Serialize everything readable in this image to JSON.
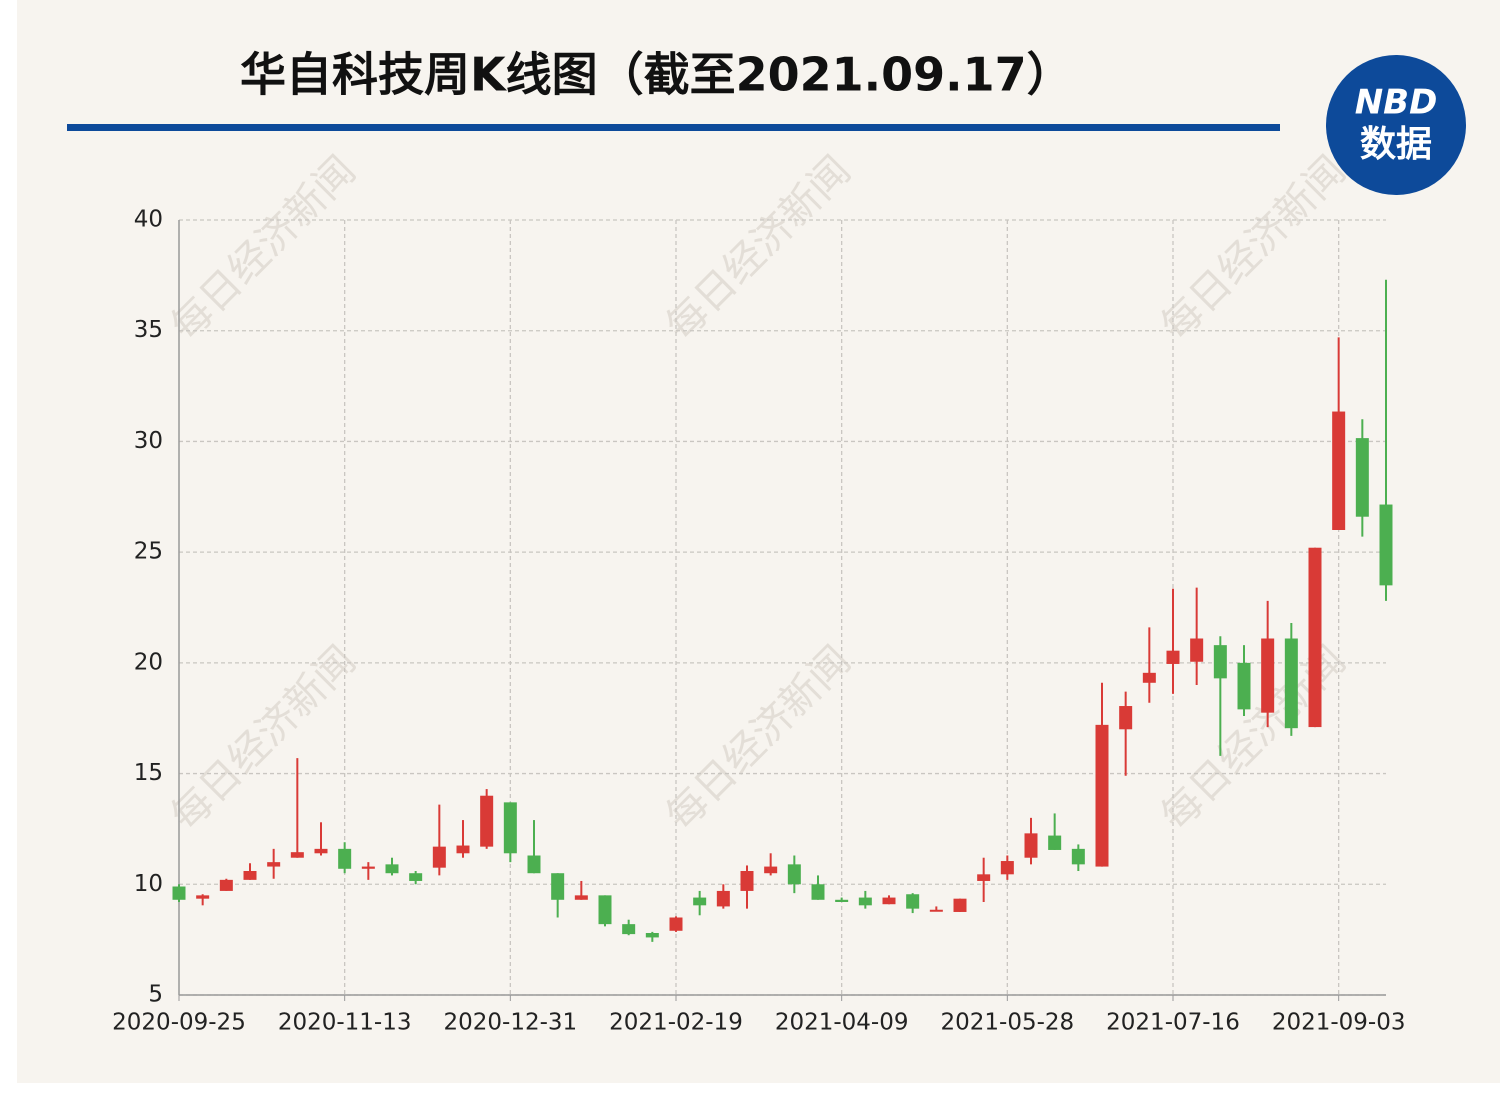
{
  "chart_data": {
    "type": "candlestick",
    "title": "华自科技周K线图（截至2021.09.17）",
    "logo": {
      "top": "NBD",
      "bottom": "数据"
    },
    "watermark": "每日经济新闻",
    "categories": [
      "2020-09-25",
      null,
      null,
      null,
      null,
      null,
      null,
      "2020-11-13",
      null,
      null,
      null,
      null,
      null,
      null,
      "2020-12-31",
      null,
      null,
      null,
      null,
      null,
      null,
      "2021-02-19",
      null,
      null,
      null,
      null,
      null,
      null,
      "2021-04-09",
      null,
      null,
      null,
      null,
      null,
      null,
      "2021-05-28",
      null,
      null,
      null,
      null,
      null,
      null,
      "2021-07-16",
      null,
      null,
      null,
      null,
      null,
      null,
      "2021-09-03",
      null,
      null
    ],
    "open": [
      9.9,
      9.35,
      9.7,
      10.2,
      10.8,
      11.2,
      11.4,
      11.6,
      10.7,
      10.9,
      10.5,
      10.75,
      11.4,
      11.7,
      13.7,
      11.3,
      10.5,
      9.3,
      9.5,
      8.2,
      7.8,
      7.9,
      9.4,
      9.0,
      9.7,
      10.5,
      10.9,
      10.0,
      9.3,
      9.4,
      9.1,
      9.55,
      8.8,
      8.75,
      10.15,
      10.45,
      11.2,
      12.2,
      11.6,
      10.8,
      17.0,
      19.1,
      19.95,
      20.05,
      20.8,
      20.0,
      17.75,
      21.1,
      17.1,
      26.0,
      30.15,
      27.15
    ],
    "close": [
      9.3,
      9.5,
      10.2,
      10.6,
      11.0,
      11.45,
      11.6,
      10.7,
      10.8,
      10.5,
      10.15,
      11.7,
      11.75,
      14.0,
      11.4,
      10.5,
      9.3,
      9.5,
      8.2,
      7.75,
      7.6,
      8.5,
      9.05,
      9.7,
      10.6,
      10.8,
      10.0,
      9.3,
      9.2,
      9.05,
      9.4,
      8.9,
      8.85,
      9.35,
      10.45,
      11.05,
      12.3,
      11.55,
      10.9,
      17.2,
      18.05,
      19.55,
      20.55,
      21.1,
      19.3,
      17.9,
      21.1,
      17.05,
      25.2,
      31.35,
      26.6,
      23.5
    ],
    "high": [
      10.0,
      9.55,
      10.25,
      10.95,
      11.6,
      15.7,
      12.8,
      11.9,
      11.0,
      11.2,
      10.6,
      13.6,
      12.9,
      14.3,
      13.7,
      12.9,
      10.5,
      10.15,
      9.5,
      8.4,
      7.85,
      8.55,
      9.7,
      10.0,
      10.85,
      11.4,
      11.3,
      10.4,
      9.4,
      9.7,
      9.5,
      9.6,
      9.0,
      9.35,
      11.2,
      11.3,
      13.0,
      13.2,
      11.8,
      19.1,
      18.7,
      21.6,
      23.35,
      23.4,
      21.2,
      20.8,
      22.8,
      21.8,
      25.2,
      34.7,
      31.0,
      37.3
    ],
    "low": [
      9.2,
      9.05,
      9.7,
      10.2,
      10.25,
      11.2,
      11.3,
      10.5,
      10.2,
      10.4,
      10.0,
      10.4,
      11.2,
      11.6,
      11.0,
      10.5,
      8.5,
      9.3,
      8.1,
      7.7,
      7.4,
      7.85,
      8.6,
      8.9,
      8.9,
      10.4,
      9.6,
      9.3,
      9.2,
      8.9,
      9.1,
      8.7,
      8.8,
      8.75,
      9.2,
      10.2,
      10.9,
      11.55,
      10.6,
      10.8,
      14.9,
      18.2,
      18.6,
      19.0,
      15.8,
      17.6,
      17.1,
      16.7,
      17.1,
      26.0,
      25.7,
      22.8
    ],
    "up_color": "#d93a36",
    "down_color": "#4caf50",
    "ylim": [
      5,
      40
    ],
    "yticks": [
      5,
      10,
      15,
      20,
      25,
      30,
      35,
      40
    ],
    "grid": true
  }
}
